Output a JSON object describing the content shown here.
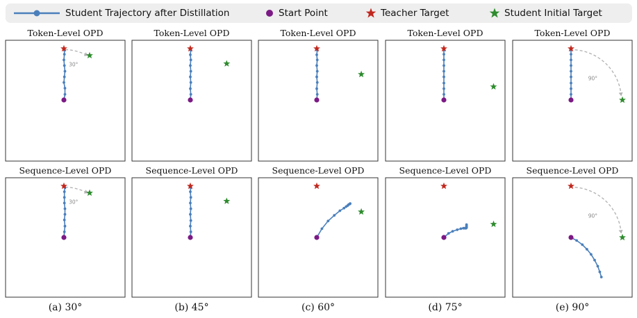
{
  "legend": {
    "trajectory": "Student Trajectory after Distillation",
    "start": "Start Point",
    "teacher": "Teacher Target",
    "student_initial": "Student Initial Target"
  },
  "colors": {
    "trajectory": "#4a7fbb",
    "start": "#7b1a85",
    "teacher": "#c0281e",
    "student_initial": "#2e8b2e",
    "arc": "#b0b0b0",
    "axes_frame": "#333333"
  },
  "chart_data": [
    {
      "type": "scatter",
      "panel": "(a) 30°",
      "row_title": "Token-Level OPD",
      "angle_label": "30°",
      "trajectory": [
        [
          0,
          0
        ],
        [
          0.02,
          0.11
        ],
        [
          0.02,
          0.23
        ],
        [
          0,
          0.34
        ],
        [
          0.01,
          0.45
        ],
        [
          0.02,
          0.56
        ],
        [
          0.01,
          0.67
        ],
        [
          0,
          0.78
        ],
        [
          0.01,
          0.89
        ],
        [
          0.01,
          0.97
        ]
      ]
    },
    {
      "type": "scatter",
      "panel": "(b) 45°",
      "row_title": "Token-Level OPD",
      "angle_label": "",
      "trajectory": [
        [
          0,
          0
        ],
        [
          0.01,
          0.11
        ],
        [
          0,
          0.22
        ],
        [
          0.01,
          0.34
        ],
        [
          0,
          0.45
        ],
        [
          0.01,
          0.56
        ],
        [
          0,
          0.67
        ],
        [
          0.01,
          0.78
        ],
        [
          0,
          0.88
        ],
        [
          0.01,
          0.97
        ]
      ]
    },
    {
      "type": "scatter",
      "panel": "(c) 60°",
      "row_title": "Token-Level OPD",
      "angle_label": "",
      "trajectory": [
        [
          0,
          0
        ],
        [
          0.01,
          0.11
        ],
        [
          0,
          0.22
        ],
        [
          0.01,
          0.34
        ],
        [
          0,
          0.45
        ],
        [
          0.01,
          0.56
        ],
        [
          0,
          0.67
        ],
        [
          0.01,
          0.78
        ],
        [
          0,
          0.88
        ],
        [
          0.01,
          0.97
        ]
      ]
    },
    {
      "type": "scatter",
      "panel": "(d) 75°",
      "row_title": "Token-Level OPD",
      "angle_label": "",
      "trajectory": [
        [
          0,
          0
        ],
        [
          0,
          0.11
        ],
        [
          0,
          0.22
        ],
        [
          0,
          0.33
        ],
        [
          0,
          0.45
        ],
        [
          0,
          0.56
        ],
        [
          0,
          0.67
        ],
        [
          0,
          0.78
        ],
        [
          0,
          0.89
        ],
        [
          0,
          0.97
        ]
      ]
    },
    {
      "type": "scatter",
      "panel": "(e) 90°",
      "row_title": "Token-Level OPD",
      "angle_label": "90°",
      "trajectory": [
        [
          0,
          0
        ],
        [
          0,
          0.11
        ],
        [
          0,
          0.22
        ],
        [
          0,
          0.33
        ],
        [
          0,
          0.45
        ],
        [
          0,
          0.56
        ],
        [
          0,
          0.67
        ],
        [
          0,
          0.78
        ],
        [
          0,
          0.89
        ],
        [
          0,
          0.97
        ]
      ]
    },
    {
      "type": "scatter",
      "panel": "(a) 30°",
      "row_title": "Sequence-Level OPD",
      "angle_label": "30°",
      "trajectory": [
        [
          0,
          0
        ],
        [
          0.01,
          0.11
        ],
        [
          0.02,
          0.22
        ],
        [
          0.01,
          0.34
        ],
        [
          0.02,
          0.45
        ],
        [
          0.02,
          0.56
        ],
        [
          0.01,
          0.67
        ],
        [
          0.01,
          0.78
        ],
        [
          0.01,
          0.89
        ],
        [
          0.02,
          0.97
        ]
      ]
    },
    {
      "type": "scatter",
      "panel": "(b) 45°",
      "row_title": "Sequence-Level OPD",
      "angle_label": "",
      "trajectory": [
        [
          0,
          0
        ],
        [
          0.01,
          0.11
        ],
        [
          0,
          0.22
        ],
        [
          0.01,
          0.33
        ],
        [
          0,
          0.45
        ],
        [
          0.01,
          0.56
        ],
        [
          0,
          0.67
        ],
        [
          0.01,
          0.78
        ],
        [
          0,
          0.89
        ],
        [
          0.01,
          0.97
        ]
      ]
    },
    {
      "type": "scatter",
      "panel": "(c) 60°",
      "row_title": "Sequence-Level OPD",
      "angle_label": "",
      "trajectory": [
        [
          0,
          0
        ],
        [
          0.1,
          0.17
        ],
        [
          0.22,
          0.32
        ],
        [
          0.34,
          0.43
        ],
        [
          0.45,
          0.52
        ],
        [
          0.53,
          0.57
        ],
        [
          0.57,
          0.6
        ],
        [
          0.6,
          0.62
        ],
        [
          0.62,
          0.64
        ],
        [
          0.64,
          0.65
        ],
        [
          0.65,
          0.66
        ]
      ]
    },
    {
      "type": "scatter",
      "panel": "(d) 75°",
      "row_title": "Sequence-Level OPD",
      "angle_label": "",
      "trajectory": [
        [
          0,
          0
        ],
        [
          0.09,
          0.08
        ],
        [
          0.17,
          0.12
        ],
        [
          0.26,
          0.15
        ],
        [
          0.33,
          0.17
        ],
        [
          0.38,
          0.18
        ],
        [
          0.41,
          0.18
        ],
        [
          0.43,
          0.18
        ],
        [
          0.44,
          0.19
        ],
        [
          0.44,
          0.21
        ],
        [
          0.44,
          0.23
        ],
        [
          0.44,
          0.25
        ]
      ]
    },
    {
      "type": "scatter",
      "panel": "(e) 90°",
      "row_title": "Sequence-Level OPD",
      "angle_label": "90°",
      "trajectory": [
        [
          0,
          0
        ],
        [
          0.11,
          -0.06
        ],
        [
          0.22,
          -0.14
        ],
        [
          0.31,
          -0.23
        ],
        [
          0.39,
          -0.33
        ],
        [
          0.46,
          -0.44
        ],
        [
          0.52,
          -0.56
        ],
        [
          0.56,
          -0.67
        ],
        [
          0.59,
          -0.77
        ]
      ]
    }
  ]
}
